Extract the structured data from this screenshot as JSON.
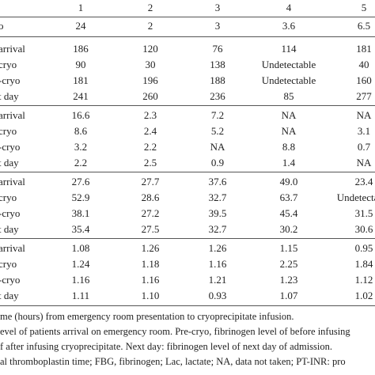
{
  "table": {
    "header": [
      "",
      "1",
      "2",
      "3",
      "4",
      "5"
    ],
    "rows": [
      [
        "o",
        "24",
        "2",
        "3",
        "3.6",
        "6.5"
      ],
      [
        "arrival",
        "186",
        "120",
        "76",
        "114",
        "181"
      ],
      [
        "cryo",
        "90",
        "30",
        "138",
        "Undetectable",
        "40"
      ],
      [
        "-cryo",
        "181",
        "196",
        "188",
        "Undetectable",
        "160"
      ],
      [
        "t day",
        "241",
        "260",
        "236",
        "85",
        "277"
      ],
      [
        "arrival",
        "16.6",
        "2.3",
        "7.2",
        "NA",
        "NA"
      ],
      [
        "cryo",
        "8.6",
        "2.4",
        "5.2",
        "NA",
        "3.1"
      ],
      [
        "-cryo",
        "3.2",
        "2.2",
        "NA",
        "8.8",
        "0.7"
      ],
      [
        "t day",
        "2.2",
        "2.5",
        "0.9",
        "1.4",
        "NA"
      ],
      [
        "arrival",
        "27.6",
        "27.7",
        "37.6",
        "49.0",
        "23.4"
      ],
      [
        "cryo",
        "52.9",
        "28.6",
        "32.7",
        "63.7",
        "Undetectable"
      ],
      [
        "-cryo",
        "38.1",
        "27.2",
        "39.5",
        "45.4",
        "31.5"
      ],
      [
        "t day",
        "35.4",
        "27.5",
        "32.7",
        "30.2",
        "30.6"
      ],
      [
        "arrival",
        "1.08",
        "1.26",
        "1.26",
        "1.15",
        "0.95"
      ],
      [
        "cryo",
        "1.24",
        "1.18",
        "1.16",
        "2.25",
        "1.84"
      ],
      [
        "-cryo",
        "1.16",
        "1.16",
        "1.21",
        "1.23",
        "1.12"
      ],
      [
        "t day",
        "1.11",
        "1.10",
        "0.93",
        "1.07",
        "1.02"
      ]
    ]
  },
  "footnotes": [
    "me (hours) from emergency room presentation to cryoprecipitate infusion.",
    "evel of patients arrival on emergency room. Pre-cryo, fibrinogen level of before infusing",
    "f after infusing cryoprecipitate. Next day: fibrinogen level of next day of admission.",
    "al thromboplastin time; FBG, fibrinogen; Lac, lactate; NA, data not taken; PT-INR: pro"
  ]
}
